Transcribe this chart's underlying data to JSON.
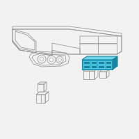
{
  "bg_color": "#f2f2f2",
  "line_color": "#999999",
  "highlight_fill": "#2bb5d8",
  "highlight_top": "#6dd4ea",
  "highlight_dark": "#1a85a0",
  "fig_width": 2.0,
  "fig_height": 2.0,
  "dpi": 100
}
